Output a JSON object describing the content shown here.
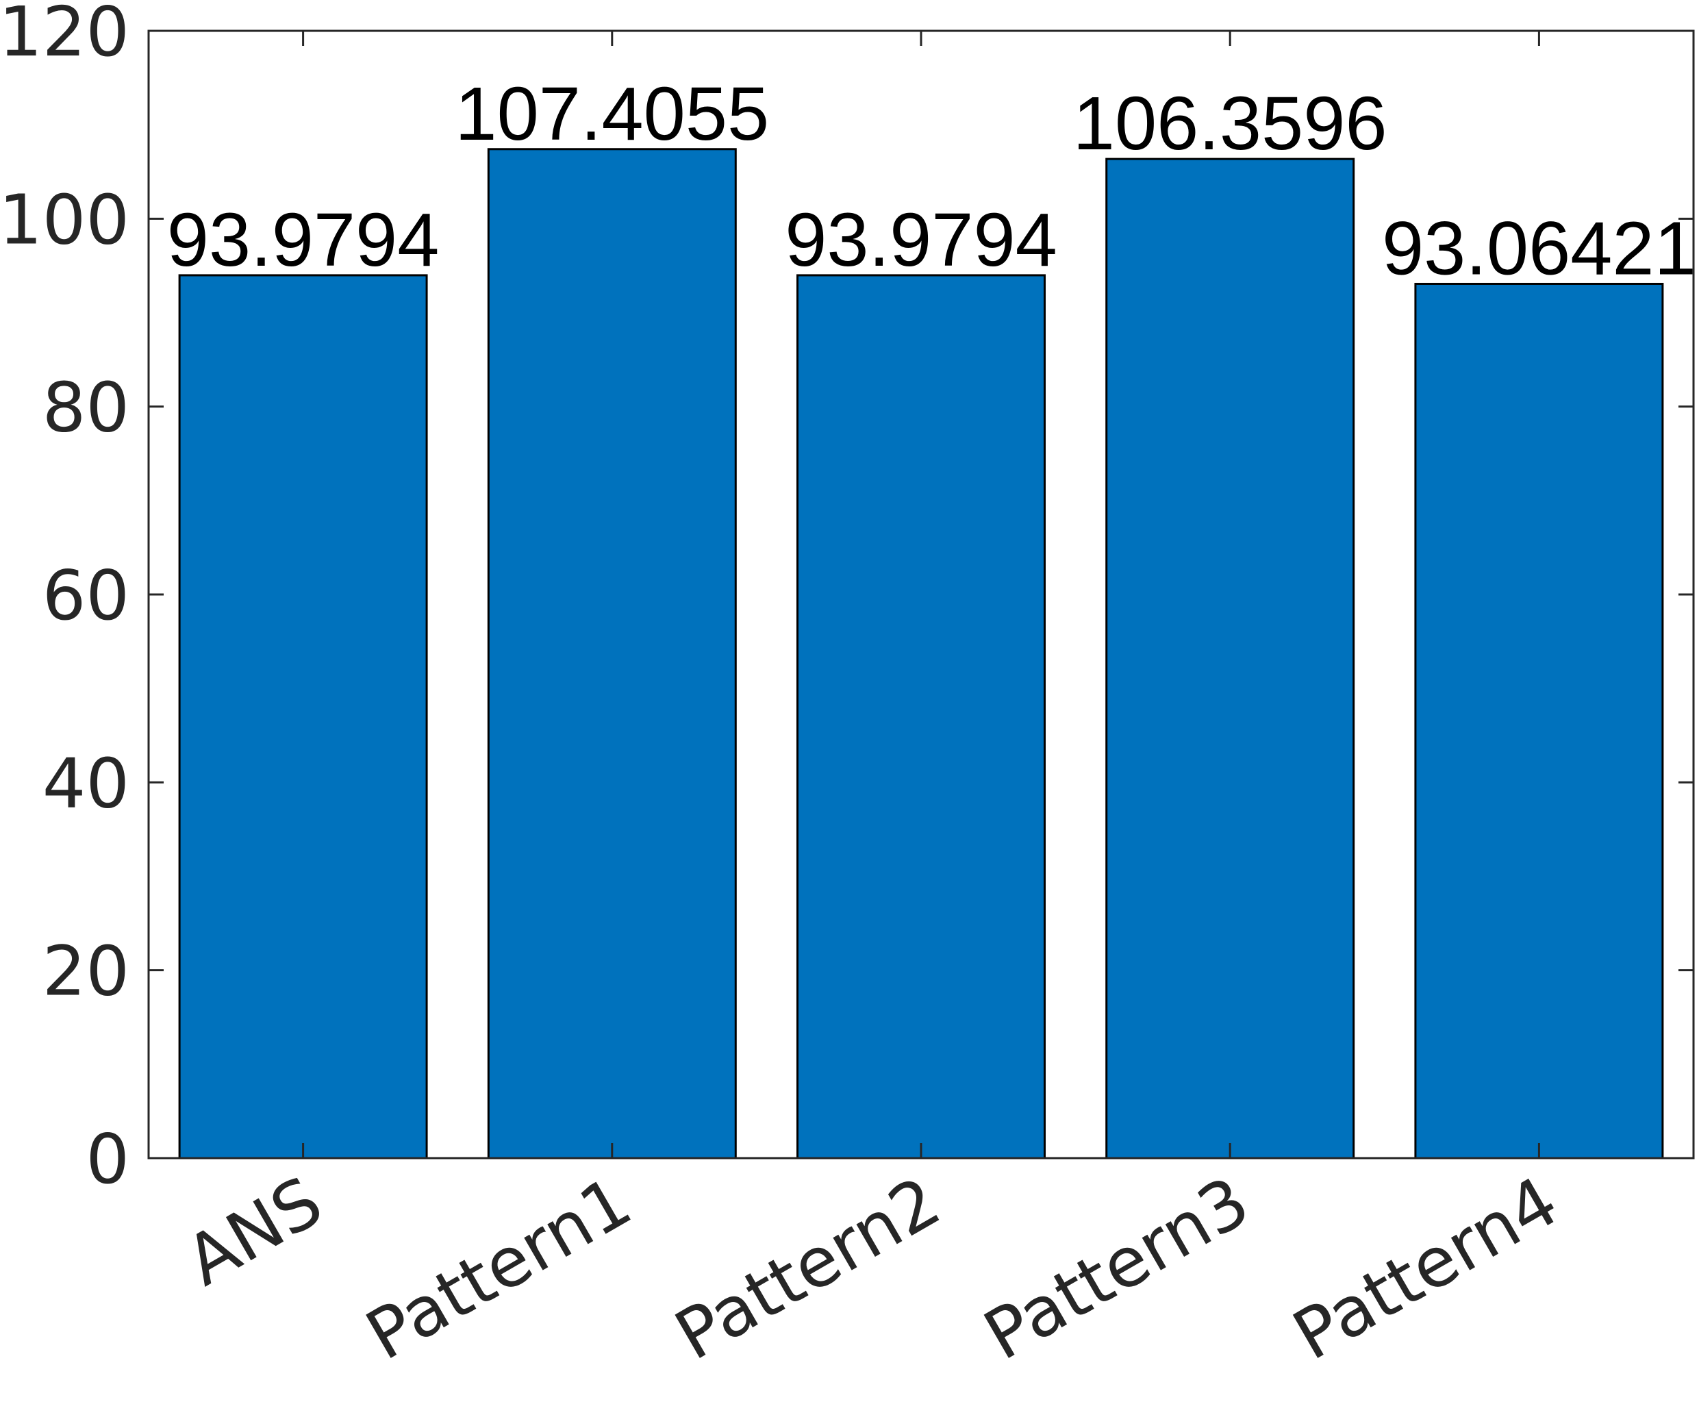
{
  "chart_data": {
    "type": "bar",
    "categories": [
      "ANS",
      "Pattern1",
      "Pattern2",
      "Pattern3",
      "Pattern4"
    ],
    "values": [
      93.9794,
      107.4055,
      93.9794,
      106.3596,
      93.06421
    ],
    "data_labels": [
      "93.9794",
      "107.4055",
      "93.9794",
      "106.3596",
      "93.06421"
    ],
    "title": "",
    "xlabel": "",
    "ylabel": "",
    "ylim": [
      0,
      120
    ],
    "yticks": [
      0,
      20,
      40,
      60,
      80,
      100,
      120
    ],
    "ytick_labels": [
      "0",
      "20",
      "40",
      "60",
      "80",
      "100",
      "120"
    ],
    "grid": false,
    "legend": "none",
    "bar_color": "#0072BD",
    "axis_color": "#262626"
  }
}
